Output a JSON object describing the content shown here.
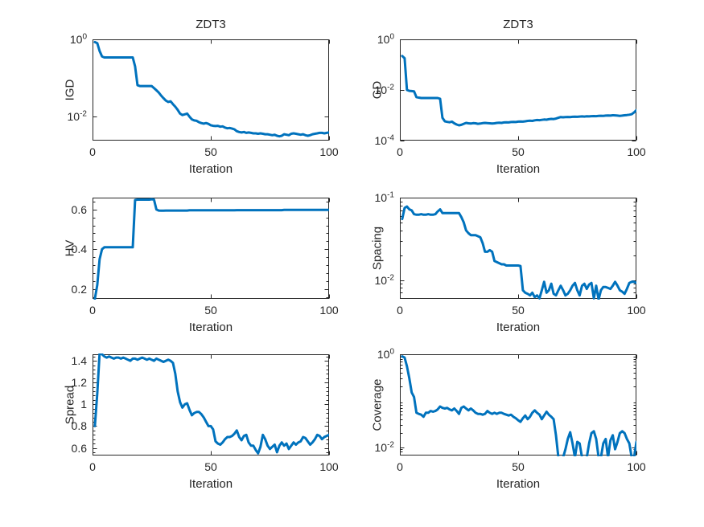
{
  "figure": {
    "background": "#ffffff",
    "line_color": "#0072BD",
    "axis_color": "#262626",
    "text_color": "#262626"
  },
  "chart_data": [
    {
      "id": "igd",
      "type": "line",
      "title": "ZDT3",
      "xlabel": "Iteration",
      "ylabel": "IGD",
      "xscale": "linear",
      "yscale": "log",
      "xlim": [
        0,
        100
      ],
      "ylim": [
        0.0024,
        1
      ],
      "grid": false,
      "legend": null,
      "xticks": [
        {
          "label": "0",
          "value": 0
        },
        {
          "label": "50",
          "value": 50
        },
        {
          "label": "100",
          "value": 100
        }
      ],
      "yticks": [
        {
          "base": "10",
          "exp": "0",
          "value": 1
        },
        {
          "base": "10",
          "exp": "-2",
          "value": 0.01
        }
      ],
      "y_minor": null,
      "x_start": 1,
      "values": [
        0.85,
        0.8,
        0.5,
        0.36,
        0.34,
        0.34,
        0.34,
        0.34,
        0.34,
        0.34,
        0.34,
        0.34,
        0.34,
        0.34,
        0.34,
        0.34,
        0.34,
        0.2,
        0.065,
        0.062,
        0.062,
        0.062,
        0.062,
        0.062,
        0.062,
        0.055,
        0.048,
        0.042,
        0.035,
        0.03,
        0.026,
        0.024,
        0.025,
        0.021,
        0.018,
        0.015,
        0.012,
        0.011,
        0.0115,
        0.012,
        0.01,
        0.0085,
        0.008,
        0.0078,
        0.0072,
        0.0068,
        0.0066,
        0.0068,
        0.0065,
        0.006,
        0.0058,
        0.0057,
        0.0058,
        0.0055,
        0.0056,
        0.0052,
        0.005,
        0.0051,
        0.0049,
        0.0047,
        0.0042,
        0.004,
        0.0039,
        0.004,
        0.0038,
        0.0039,
        0.0038,
        0.0037,
        0.0037,
        0.0036,
        0.0037,
        0.0036,
        0.0035,
        0.0035,
        0.0034,
        0.0033,
        0.0034,
        0.0032,
        0.0031,
        0.0032,
        0.0035,
        0.0034,
        0.0033,
        0.0036,
        0.0037,
        0.0036,
        0.0035,
        0.0034,
        0.0035,
        0.0033,
        0.0032,
        0.0033,
        0.0035,
        0.0036,
        0.0037,
        0.0038,
        0.0038,
        0.0037,
        0.0038,
        0.0039
      ]
    },
    {
      "id": "gd",
      "type": "line",
      "title": "ZDT3",
      "xlabel": "Iteration",
      "ylabel": "GD",
      "xscale": "linear",
      "yscale": "log",
      "xlim": [
        0,
        100
      ],
      "ylim": [
        0.0001,
        1
      ],
      "grid": false,
      "legend": null,
      "xticks": [
        {
          "label": "0",
          "value": 0
        },
        {
          "label": "50",
          "value": 50
        },
        {
          "label": "100",
          "value": 100
        }
      ],
      "yticks": [
        {
          "base": "10",
          "exp": "0",
          "value": 1
        },
        {
          "base": "10",
          "exp": "-2",
          "value": 0.01
        },
        {
          "base": "10",
          "exp": "-4",
          "value": 0.0001
        }
      ],
      "y_minor": null,
      "x_start": 1,
      "values": [
        0.22,
        0.18,
        0.01,
        0.0092,
        0.009,
        0.0088,
        0.0052,
        0.005,
        0.0048,
        0.0048,
        0.0048,
        0.0048,
        0.0048,
        0.0048,
        0.0048,
        0.0048,
        0.0045,
        0.0008,
        0.00058,
        0.00055,
        0.00053,
        0.00056,
        0.00048,
        0.00043,
        0.0004,
        0.00042,
        0.00046,
        0.0005,
        0.00048,
        0.00047,
        0.00049,
        0.00048,
        0.00046,
        0.00047,
        0.00049,
        0.0005,
        0.00049,
        0.00048,
        0.00047,
        0.00048,
        0.0005,
        0.00051,
        0.0005,
        0.00052,
        0.00053,
        0.00052,
        0.00054,
        0.00055,
        0.00054,
        0.00056,
        0.00057,
        0.00056,
        0.00058,
        0.0006,
        0.00061,
        0.0006,
        0.00063,
        0.00065,
        0.00064,
        0.00066,
        0.00068,
        0.00067,
        0.0007,
        0.00072,
        0.00071,
        0.00074,
        0.0008,
        0.00085,
        0.00083,
        0.00085,
        0.00086,
        0.00085,
        0.00087,
        0.00088,
        0.00087,
        0.00089,
        0.0009,
        0.00089,
        0.00091,
        0.0009,
        0.00092,
        0.00093,
        0.00092,
        0.00094,
        0.00096,
        0.00095,
        0.00097,
        0.00098,
        0.00097,
        0.001,
        0.00099,
        0.00097,
        0.00095,
        0.00097,
        0.001,
        0.00102,
        0.00105,
        0.0011,
        0.0013,
        0.0016
      ]
    },
    {
      "id": "hv",
      "type": "line",
      "title": "",
      "xlabel": "Iteration",
      "ylabel": "HV",
      "xscale": "linear",
      "yscale": "linear",
      "xlim": [
        0,
        100
      ],
      "ylim": [
        0.15,
        0.66
      ],
      "grid": false,
      "legend": null,
      "xticks": [
        {
          "label": "0",
          "value": 0
        },
        {
          "label": "50",
          "value": 50
        },
        {
          "label": "100",
          "value": 100
        }
      ],
      "yticks": [
        {
          "label": "0.2",
          "value": 0.2
        },
        {
          "label": "0.4",
          "value": 0.4
        },
        {
          "label": "0.6",
          "value": 0.6
        }
      ],
      "y_minor": {
        "step": 0.04
      },
      "x_start": 1,
      "values": [
        0.15,
        0.22,
        0.35,
        0.4,
        0.41,
        0.41,
        0.41,
        0.41,
        0.41,
        0.41,
        0.41,
        0.41,
        0.41,
        0.41,
        0.41,
        0.41,
        0.41,
        0.648,
        0.65,
        0.65,
        0.65,
        0.65,
        0.65,
        0.65,
        0.652,
        0.65,
        0.6,
        0.595,
        0.594,
        0.594,
        0.595,
        0.595,
        0.595,
        0.595,
        0.595,
        0.595,
        0.595,
        0.595,
        0.595,
        0.595,
        0.596,
        0.596,
        0.596,
        0.596,
        0.596,
        0.596,
        0.596,
        0.596,
        0.596,
        0.596,
        0.596,
        0.596,
        0.596,
        0.596,
        0.596,
        0.596,
        0.596,
        0.596,
        0.596,
        0.596,
        0.597,
        0.597,
        0.597,
        0.597,
        0.597,
        0.597,
        0.597,
        0.597,
        0.597,
        0.597,
        0.597,
        0.597,
        0.597,
        0.597,
        0.597,
        0.597,
        0.597,
        0.597,
        0.597,
        0.597,
        0.598,
        0.598,
        0.598,
        0.598,
        0.598,
        0.598,
        0.598,
        0.598,
        0.598,
        0.598,
        0.598,
        0.598,
        0.598,
        0.598,
        0.598,
        0.598,
        0.598,
        0.598,
        0.598,
        0.598
      ]
    },
    {
      "id": "spacing",
      "type": "line",
      "title": "",
      "xlabel": "Iteration",
      "ylabel": "Spacing",
      "xscale": "linear",
      "yscale": "log",
      "xlim": [
        0,
        100
      ],
      "ylim": [
        0.0059,
        0.1
      ],
      "grid": false,
      "legend": null,
      "xticks": [
        {
          "label": "0",
          "value": 0
        },
        {
          "label": "50",
          "value": 50
        },
        {
          "label": "100",
          "value": 100
        }
      ],
      "yticks": [
        {
          "base": "10",
          "exp": "-1",
          "value": 0.1
        },
        {
          "base": "10",
          "exp": "-2",
          "value": 0.01
        }
      ],
      "y_minor": "log",
      "x_start": 1,
      "values": [
        0.055,
        0.075,
        0.078,
        0.072,
        0.07,
        0.063,
        0.062,
        0.062,
        0.063,
        0.062,
        0.062,
        0.063,
        0.062,
        0.062,
        0.063,
        0.068,
        0.072,
        0.065,
        0.065,
        0.065,
        0.065,
        0.065,
        0.065,
        0.065,
        0.065,
        0.058,
        0.05,
        0.04,
        0.037,
        0.035,
        0.035,
        0.035,
        0.034,
        0.033,
        0.028,
        0.022,
        0.022,
        0.023,
        0.022,
        0.017,
        0.0165,
        0.016,
        0.0155,
        0.0155,
        0.015,
        0.015,
        0.015,
        0.015,
        0.015,
        0.015,
        0.0148,
        0.0075,
        0.007,
        0.0068,
        0.0065,
        0.007,
        0.0062,
        0.0065,
        0.006,
        0.0075,
        0.0095,
        0.007,
        0.0075,
        0.009,
        0.0068,
        0.0065,
        0.0075,
        0.0085,
        0.0075,
        0.0065,
        0.0068,
        0.0075,
        0.0085,
        0.0092,
        0.0075,
        0.0065,
        0.0085,
        0.009,
        0.0078,
        0.0088,
        0.0092,
        0.006,
        0.0085,
        0.0058,
        0.0075,
        0.0082,
        0.0082,
        0.008,
        0.0078,
        0.0085,
        0.0095,
        0.0085,
        0.0075,
        0.0072,
        0.0068,
        0.0078,
        0.0092,
        0.0095,
        0.0095,
        0.0092
      ]
    },
    {
      "id": "spread",
      "type": "line",
      "title": "",
      "xlabel": "Iteration",
      "ylabel": "Spread",
      "xscale": "linear",
      "yscale": "linear",
      "xlim": [
        0,
        100
      ],
      "ylim": [
        0.53,
        1.46
      ],
      "grid": false,
      "legend": null,
      "xticks": [
        {
          "label": "0",
          "value": 0
        },
        {
          "label": "50",
          "value": 50
        },
        {
          "label": "100",
          "value": 100
        }
      ],
      "yticks": [
        {
          "label": "0.6",
          "value": 0.6
        },
        {
          "label": "0.8",
          "value": 0.8
        },
        {
          "label": "1",
          "value": 1
        },
        {
          "label": "1.2",
          "value": 1.2
        },
        {
          "label": "1.4",
          "value": 1.4
        }
      ],
      "y_minor": {
        "step": 0.04
      },
      "x_start": 1,
      "values": [
        0.8,
        1.1,
        1.47,
        1.46,
        1.44,
        1.43,
        1.44,
        1.43,
        1.42,
        1.43,
        1.43,
        1.42,
        1.43,
        1.42,
        1.41,
        1.4,
        1.42,
        1.42,
        1.41,
        1.42,
        1.43,
        1.42,
        1.41,
        1.42,
        1.41,
        1.4,
        1.42,
        1.41,
        1.4,
        1.39,
        1.4,
        1.41,
        1.4,
        1.38,
        1.28,
        1.12,
        1.02,
        0.97,
        1.0,
        1.01,
        0.95,
        0.9,
        0.92,
        0.93,
        0.93,
        0.91,
        0.88,
        0.84,
        0.8,
        0.8,
        0.77,
        0.66,
        0.64,
        0.63,
        0.65,
        0.68,
        0.7,
        0.7,
        0.71,
        0.73,
        0.76,
        0.7,
        0.67,
        0.71,
        0.72,
        0.65,
        0.62,
        0.62,
        0.58,
        0.55,
        0.61,
        0.72,
        0.68,
        0.62,
        0.59,
        0.61,
        0.63,
        0.56,
        0.62,
        0.65,
        0.62,
        0.64,
        0.59,
        0.62,
        0.65,
        0.63,
        0.65,
        0.66,
        0.7,
        0.69,
        0.66,
        0.63,
        0.65,
        0.68,
        0.72,
        0.71,
        0.68,
        0.7,
        0.71,
        0.72
      ]
    },
    {
      "id": "coverage",
      "type": "line",
      "title": "",
      "xlabel": "Iteration",
      "ylabel": "Coverage",
      "xscale": "linear",
      "yscale": "log",
      "xlim": [
        0,
        100
      ],
      "ylim": [
        0.0066,
        1
      ],
      "grid": false,
      "legend": null,
      "xticks": [
        {
          "label": "0",
          "value": 0
        },
        {
          "label": "50",
          "value": 50
        },
        {
          "label": "100",
          "value": 100
        }
      ],
      "yticks": [
        {
          "base": "10",
          "exp": "0",
          "value": 1
        },
        {
          "base": "10",
          "exp": "-2",
          "value": 0.01
        }
      ],
      "y_minor": "log",
      "x_start": 1,
      "values": [
        0.9,
        0.85,
        0.55,
        0.3,
        0.15,
        0.12,
        0.055,
        0.052,
        0.05,
        0.045,
        0.055,
        0.055,
        0.06,
        0.058,
        0.06,
        0.065,
        0.075,
        0.07,
        0.068,
        0.07,
        0.065,
        0.062,
        0.068,
        0.06,
        0.052,
        0.07,
        0.075,
        0.068,
        0.062,
        0.068,
        0.062,
        0.055,
        0.052,
        0.052,
        0.05,
        0.052,
        0.06,
        0.055,
        0.052,
        0.055,
        0.052,
        0.055,
        0.055,
        0.052,
        0.05,
        0.048,
        0.05,
        0.045,
        0.042,
        0.038,
        0.035,
        0.042,
        0.048,
        0.04,
        0.045,
        0.055,
        0.062,
        0.055,
        0.05,
        0.04,
        0.048,
        0.058,
        0.05,
        0.045,
        0.04,
        0.018,
        0.006,
        0.006,
        0.006,
        0.009,
        0.015,
        0.021,
        0.012,
        0.006,
        0.013,
        0.012,
        0.006,
        0.006,
        0.006,
        0.012,
        0.02,
        0.022,
        0.015,
        0.006,
        0.006,
        0.012,
        0.015,
        0.006,
        0.014,
        0.018,
        0.009,
        0.013,
        0.02,
        0.022,
        0.02,
        0.015,
        0.012,
        0.006,
        0.006,
        0.013
      ]
    }
  ]
}
